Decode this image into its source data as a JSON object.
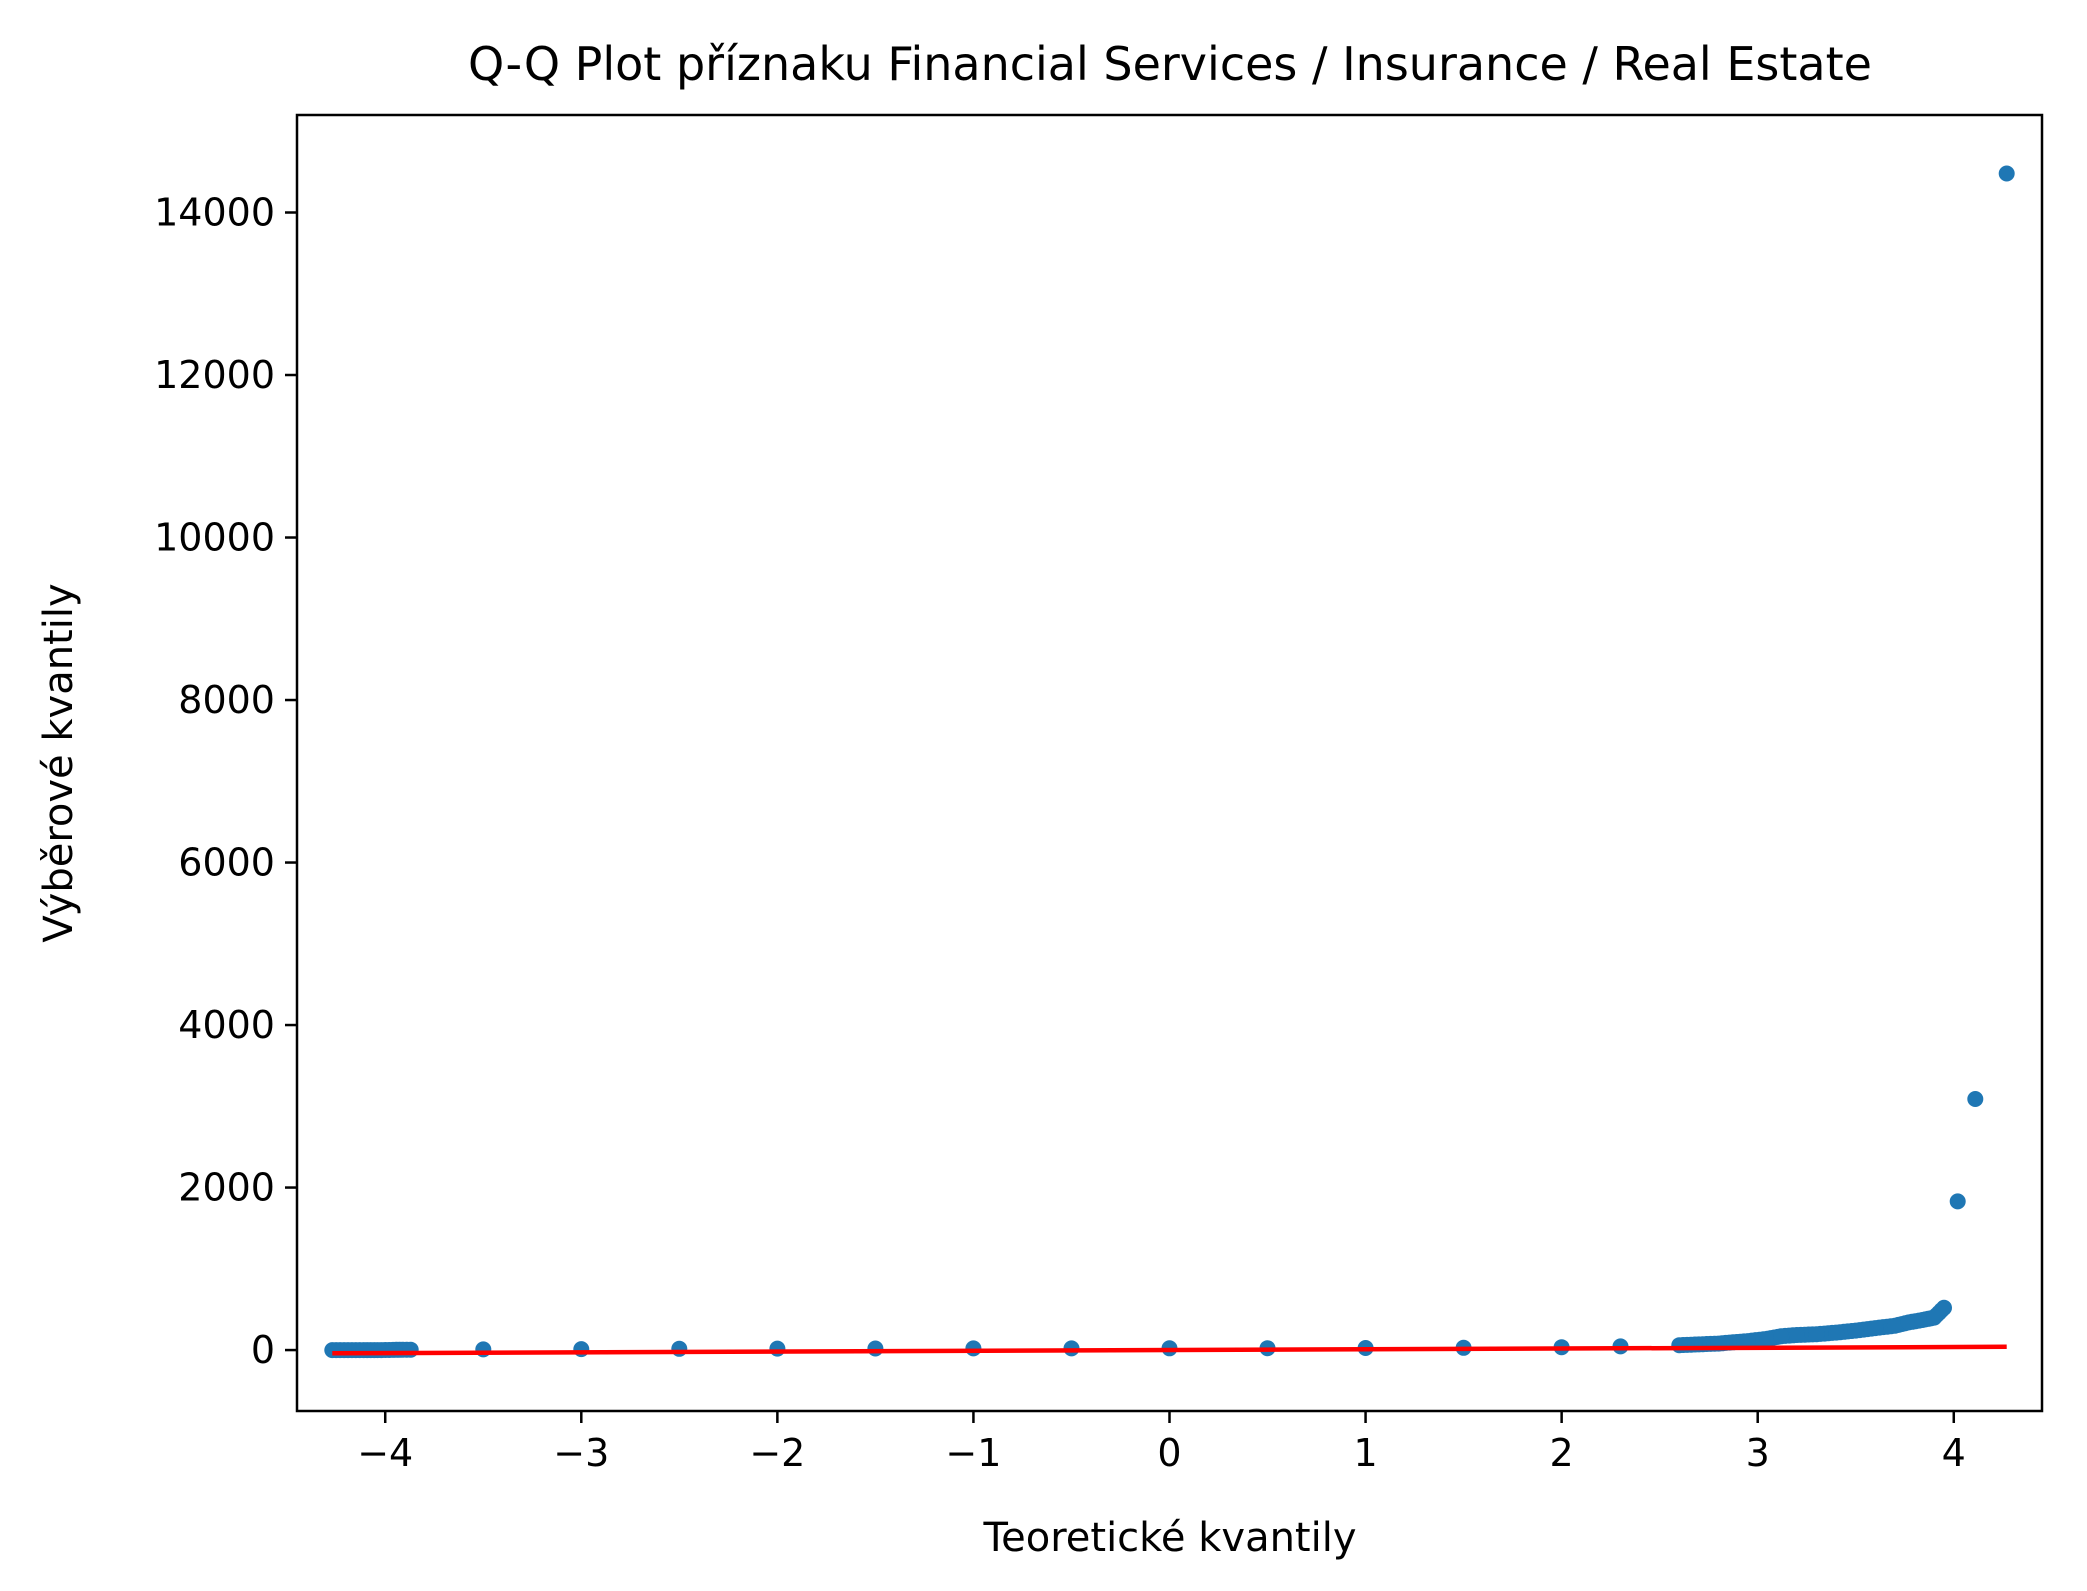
{
  "chart_data": {
    "type": "scatter",
    "title": "Q-Q Plot příznaku Financial Services / Insurance / Real Estate",
    "xlabel": "Teoretické kvantily",
    "ylabel": "Výběrové kvantily",
    "xlim": [
      -4.45,
      4.45
    ],
    "ylim": [
      -750,
      15200
    ],
    "xticks": [
      -4,
      -3,
      -2,
      -1,
      0,
      1,
      2,
      3,
      4
    ],
    "xtick_labels": [
      "−4",
      "−3",
      "−2",
      "−1",
      "0",
      "1",
      "2",
      "3",
      "4"
    ],
    "yticks": [
      0,
      2000,
      4000,
      6000,
      8000,
      10000,
      12000,
      14000
    ],
    "ytick_labels": [
      "0",
      "2000",
      "4000",
      "6000",
      "8000",
      "10000",
      "12000",
      "14000"
    ],
    "grid": false,
    "colors": {
      "points": "#1f77b4",
      "fit_line": "#ff0000"
    },
    "points": [
      [
        -4.27,
        0
      ],
      [
        -4.11,
        0
      ],
      [
        -4.02,
        0
      ],
      [
        -3.96,
        2
      ],
      [
        -3.91,
        4
      ],
      [
        -3.87,
        5
      ],
      [
        -3.5,
        8
      ],
      [
        -3.0,
        12
      ],
      [
        -2.5,
        15
      ],
      [
        -2.0,
        18
      ],
      [
        -1.5,
        19
      ],
      [
        -1.0,
        20
      ],
      [
        -0.5,
        21
      ],
      [
        0.0,
        22
      ],
      [
        0.5,
        23
      ],
      [
        1.0,
        25
      ],
      [
        1.5,
        28
      ],
      [
        2.0,
        35
      ],
      [
        2.3,
        45
      ],
      [
        2.6,
        60
      ],
      [
        2.8,
        80
      ],
      [
        2.95,
        110
      ],
      [
        3.05,
        140
      ],
      [
        3.12,
        170
      ],
      [
        3.2,
        185
      ],
      [
        3.3,
        195
      ],
      [
        3.4,
        215
      ],
      [
        3.5,
        240
      ],
      [
        3.6,
        270
      ],
      [
        3.7,
        300
      ],
      [
        3.77,
        340
      ],
      [
        3.84,
        370
      ],
      [
        3.9,
        400
      ],
      [
        3.95,
        520
      ],
      [
        4.02,
        1830
      ],
      [
        4.11,
        3090
      ],
      [
        4.27,
        14480
      ]
    ],
    "fit_line": {
      "x": [
        -4.27,
        4.27
      ],
      "y": [
        -40,
        40
      ]
    }
  }
}
